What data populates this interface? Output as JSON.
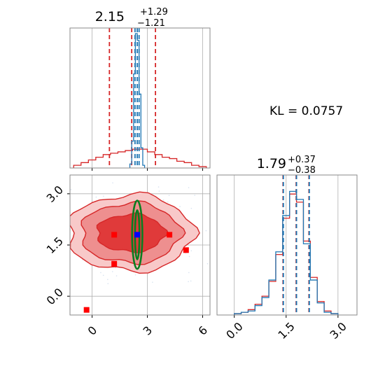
{
  "colors": {
    "posterior": "#d62728",
    "reference": "#1f77b4",
    "ellipse": "#0a7d20",
    "point_red": "#ff0000",
    "point_blue": "#0000ff",
    "grid": "#b0b0b0"
  },
  "kl_text": "KL = 0.0757",
  "chart_data": [
    {
      "type": "histogram",
      "panel": "top-left marginal",
      "title_main": "2.15",
      "title_plus": "+1.29",
      "title_minus": "−1.21",
      "xlim": [
        -1.2,
        6.4
      ],
      "xticks": [
        0,
        3,
        6
      ],
      "grid": true,
      "series": [
        {
          "color": "#d62728",
          "bin_edges": [
            -1.0,
            -0.6,
            -0.2,
            0.2,
            0.6,
            1.0,
            1.4,
            1.8,
            2.2,
            2.6,
            3.0,
            3.4,
            3.8,
            4.2,
            4.6,
            5.0,
            5.4,
            5.8,
            6.2
          ],
          "values": [
            0.02,
            0.04,
            0.06,
            0.08,
            0.1,
            0.11,
            0.12,
            0.13,
            0.14,
            0.14,
            0.12,
            0.1,
            0.08,
            0.07,
            0.05,
            0.04,
            0.02,
            0.01
          ],
          "quantiles": [
            0.94,
            2.15,
            3.44
          ]
        },
        {
          "color": "#1f77b4",
          "bin_edges": [
            2.05,
            2.15,
            2.25,
            2.35,
            2.45,
            2.55,
            2.65,
            2.75,
            2.85
          ],
          "values": [
            0.03,
            0.2,
            0.7,
            1.0,
            0.95,
            0.55,
            0.15,
            0.02
          ],
          "quantiles": [
            2.33,
            2.45,
            2.55
          ]
        }
      ]
    },
    {
      "type": "contour",
      "panel": "bottom-left 2D",
      "xlim": [
        -1.2,
        6.4
      ],
      "ylim": [
        -0.55,
        3.55
      ],
      "xticks": [
        0,
        3,
        6
      ],
      "yticks": [
        "0.0",
        "1.5",
        "3.0"
      ],
      "grid": true,
      "filled_levels": [
        {
          "cx": 2.1,
          "cy": 1.85,
          "rx": 3.4,
          "ry": 1.12,
          "fill": "#f8c9c9"
        },
        {
          "cx": 2.1,
          "cy": 1.85,
          "rx": 2.7,
          "ry": 0.88,
          "fill": "#ee8f8f"
        },
        {
          "cx": 2.1,
          "cy": 1.85,
          "rx": 1.85,
          "ry": 0.55,
          "fill": "#e03a3a"
        }
      ],
      "ellipses": [
        {
          "cx": 2.45,
          "cy": 1.8,
          "rx": 0.28,
          "ry": 1.0
        },
        {
          "cx": 2.45,
          "cy": 1.8,
          "rx": 0.12,
          "ry": 0.72
        }
      ],
      "red_points": [
        [
          1.2,
          1.8
        ],
        [
          4.2,
          1.8
        ],
        [
          1.2,
          0.95
        ],
        [
          5.1,
          1.35
        ],
        [
          -0.3,
          -0.4
        ]
      ],
      "blue_points": [
        [
          2.45,
          1.8
        ]
      ]
    },
    {
      "type": "histogram",
      "panel": "bottom-right marginal",
      "title_main": "1.79",
      "title_plus": "+0.37",
      "title_minus": "−0.38",
      "xlim": [
        -0.5,
        3.55
      ],
      "xticks": [
        "0.0",
        "1.5",
        "3.0"
      ],
      "grid": true,
      "series": [
        {
          "color": "#d62728",
          "bin_edges": [
            0.0,
            0.2,
            0.4,
            0.6,
            0.8,
            1.0,
            1.2,
            1.4,
            1.6,
            1.8,
            2.0,
            2.2,
            2.4,
            2.6,
            2.8,
            3.0
          ],
          "values": [
            0.01,
            0.02,
            0.04,
            0.08,
            0.14,
            0.25,
            0.45,
            0.72,
            0.9,
            0.84,
            0.55,
            0.28,
            0.1,
            0.03,
            0.01
          ],
          "quantiles": [
            1.41,
            1.79,
            2.16
          ]
        },
        {
          "color": "#1f77b4",
          "bin_edges": [
            0.0,
            0.2,
            0.4,
            0.6,
            0.8,
            1.0,
            1.2,
            1.4,
            1.6,
            1.8,
            2.0,
            2.2,
            2.4,
            2.6,
            2.8,
            3.0
          ],
          "values": [
            0.01,
            0.02,
            0.03,
            0.07,
            0.13,
            0.26,
            0.47,
            0.74,
            0.92,
            0.86,
            0.53,
            0.26,
            0.09,
            0.02,
            0.01
          ],
          "quantiles": [
            1.42,
            1.8,
            2.17
          ]
        }
      ]
    }
  ]
}
